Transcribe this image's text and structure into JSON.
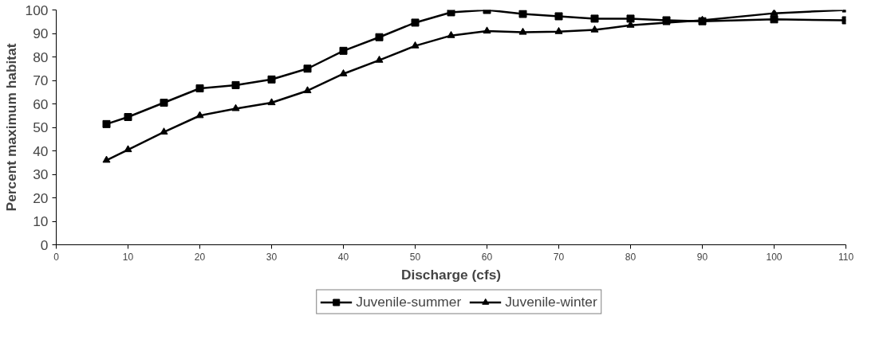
{
  "chart_data": {
    "type": "line",
    "xlabel": "Discharge (cfs)",
    "ylabel": "Percent maximum habitat",
    "x": [
      7,
      10,
      15,
      20,
      25,
      30,
      35,
      40,
      45,
      50,
      55,
      60,
      65,
      70,
      75,
      80,
      85,
      90,
      100,
      110
    ],
    "series": [
      {
        "name": "Juvenile-summer",
        "color": "#000000",
        "marker": "square",
        "values": [
          51.4,
          54.4,
          60.5,
          66.6,
          68,
          70.4,
          75,
          82.6,
          88.4,
          94.6,
          99,
          100,
          98.3,
          97.3,
          96.3,
          96.3,
          95.6,
          95.2,
          96,
          95.6
        ]
      },
      {
        "name": "Juvenile-winter",
        "color": "#000000",
        "marker": "triangle",
        "values": [
          36,
          40.5,
          48,
          55,
          58,
          60.5,
          65.6,
          72.8,
          78.6,
          84.7,
          89.1,
          91,
          90.5,
          90.8,
          91.5,
          93.5,
          94.6,
          95.6,
          98.6,
          100
        ]
      }
    ],
    "xlim": [
      0,
      110
    ],
    "ylim": [
      0,
      100
    ],
    "xticks": [
      0,
      10,
      20,
      30,
      40,
      50,
      60,
      70,
      80,
      90,
      100,
      110
    ],
    "yticks": [
      0,
      10,
      20,
      30,
      40,
      50,
      60,
      70,
      80,
      90,
      100
    ],
    "grid": false,
    "legend": "bottom",
    "line_style": "solid"
  }
}
